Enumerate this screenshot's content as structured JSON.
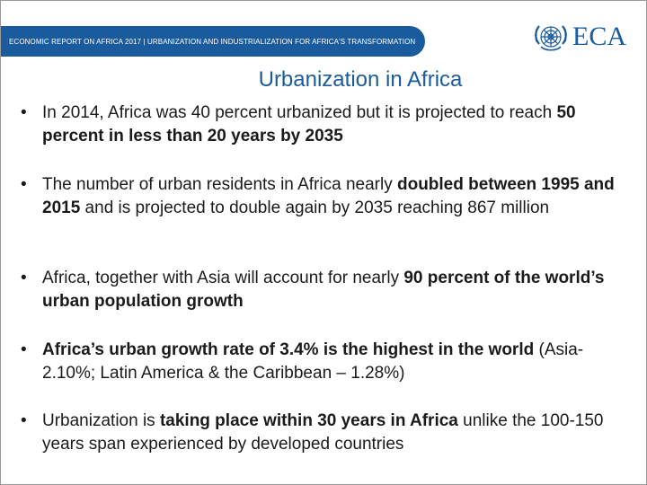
{
  "header": {
    "banner_text": "ECONOMIC REPORT ON AFRICA 2017  |  URBANIZATION AND INDUSTRIALIZATION FOR AFRICA'S TRANSFORMATION",
    "logo_text": "ECA",
    "logo_icon": "un-emblem-icon"
  },
  "slide": {
    "title": "Urbanization in Africa",
    "bullets": [
      {
        "parts": [
          {
            "text": "In 2014, Africa was 40 percent urbanized but it is projected to reach ",
            "bold": false
          },
          {
            "text": "50 percent in less than 20 years by 2035",
            "bold": true
          }
        ]
      },
      {
        "parts": [
          {
            "text": "The number of urban residents in Africa nearly ",
            "bold": false
          },
          {
            "text": "doubled between 1995 and 2015",
            "bold": true
          },
          {
            "text": " and is projected to double again by 2035 reaching 867 million",
            "bold": false
          }
        ]
      },
      {
        "parts": [
          {
            "text": "Africa, together with Asia will account for nearly ",
            "bold": false
          },
          {
            "text": "90 percent of the world’s urban population growth",
            "bold": true
          }
        ]
      },
      {
        "parts": [
          {
            "text": "Africa’s urban growth rate of 3.4% is the highest in the world",
            "bold": true
          },
          {
            "text": " (Asia- 2.10%; Latin America & the Caribbean – 1.28%)",
            "bold": false
          }
        ]
      },
      {
        "parts": [
          {
            "text": "Urbanization is ",
            "bold": false
          },
          {
            "text": "taking place within 30 years in Africa",
            "bold": true
          },
          {
            "text": " unlike the 100-150 years span experienced by developed countries",
            "bold": false
          }
        ]
      }
    ]
  },
  "colors": {
    "brand_blue": "#1a5b9e",
    "text": "#1a1a1a"
  }
}
